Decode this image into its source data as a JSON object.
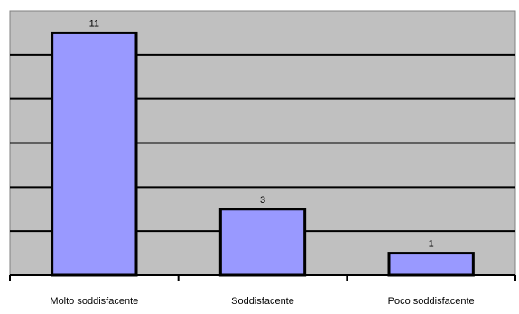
{
  "chart_data": {
    "type": "bar",
    "categories": [
      "Molto soddisfacente",
      "Soddisfacente",
      "Poco soddisfacente"
    ],
    "values": [
      11,
      3,
      1
    ],
    "data_labels": [
      "11",
      "3",
      "1"
    ],
    "title": "",
    "xlabel": "",
    "ylabel": "",
    "ylim": [
      0,
      12
    ],
    "grid": true,
    "legend": "none",
    "colors": {
      "plot_background": "#c0c0c0",
      "bar_fill": "#9999ff",
      "bar_stroke": "#000000",
      "gridline": "#000000",
      "border": "#808080"
    }
  }
}
